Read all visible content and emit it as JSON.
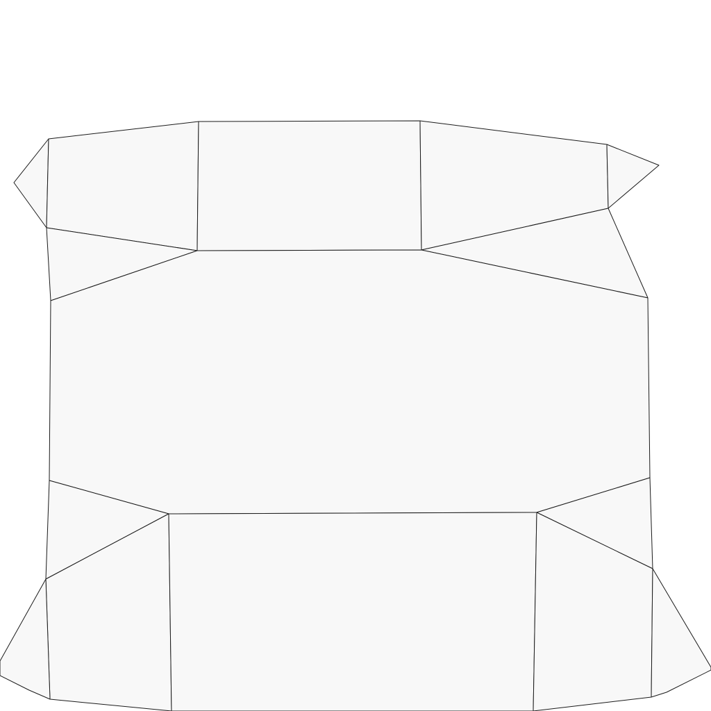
{
  "diagram": {
    "type": "box-net-dieline",
    "fill_color": "#f8f8f8",
    "stroke_color": "#1a1a1a",
    "background_color": "#ffffff"
  }
}
